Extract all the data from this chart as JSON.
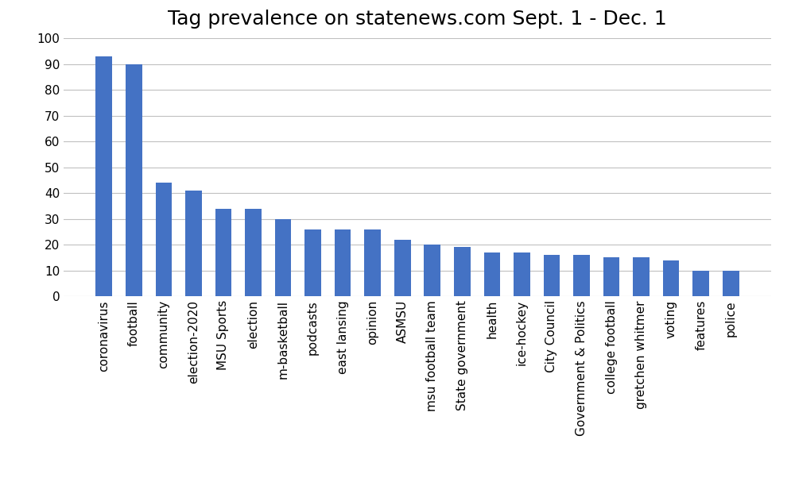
{
  "title": "Tag prevalence on statenews.com Sept. 1 - Dec. 1",
  "categories": [
    "coronavirus",
    "football",
    "community",
    "election-2020",
    "MSU Sports",
    "election",
    "m-basketball",
    "podcasts",
    "east lansing",
    "opinion",
    "ASMSU",
    "msu football team",
    "State government",
    "health",
    "ice-hockey",
    "City Council",
    "Government & Politics",
    "college football",
    "gretchen whitmer",
    "voting",
    "features",
    "police"
  ],
  "values": [
    93,
    90,
    44,
    41,
    34,
    34,
    30,
    26,
    26,
    26,
    22,
    20,
    19,
    17,
    17,
    16,
    16,
    15,
    15,
    14,
    10,
    10
  ],
  "bar_color": "#4472C4",
  "ylim": [
    0,
    100
  ],
  "yticks": [
    0,
    10,
    20,
    30,
    40,
    50,
    60,
    70,
    80,
    90,
    100
  ],
  "title_fontsize": 18,
  "tick_fontsize": 11,
  "background_color": "#FFFFFF",
  "grid_color": "#C0C0C0"
}
